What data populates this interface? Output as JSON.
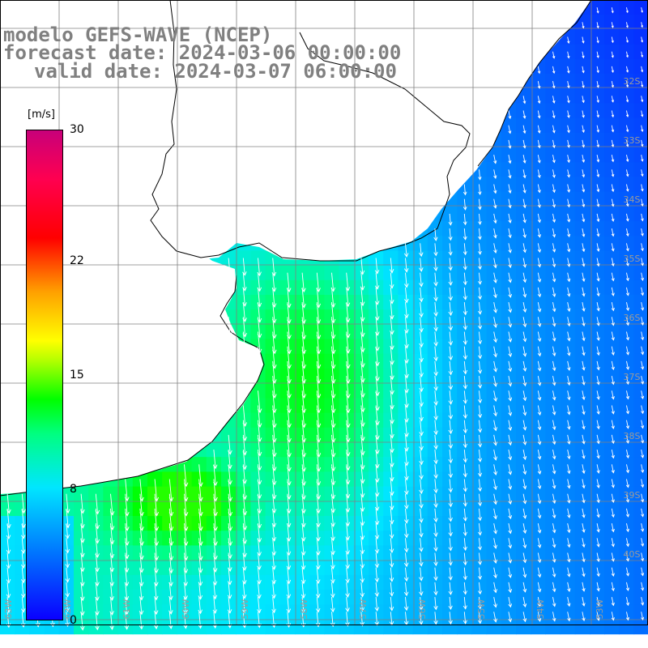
{
  "title": {
    "model": "modelo GEFS-WAVE (NCEP)",
    "forecast": "forecast date: 2024-03-06 00:00:00",
    "valid": "valid date: 2024-03-07 06:00:00"
  },
  "colorbar": {
    "unit": "[m/s]",
    "ticks": [
      {
        "label": "30",
        "value": 30
      },
      {
        "label": "22",
        "value": 22
      },
      {
        "label": "15",
        "value": 15
      },
      {
        "label": "8",
        "value": 8
      },
      {
        "label": "0",
        "value": 0
      }
    ],
    "colors": [
      "#0a00ff",
      "#0078ff",
      "#00e6ff",
      "#00ff80",
      "#00ff00",
      "#ffff00",
      "#ff0000",
      "#c8007a"
    ]
  },
  "map": {
    "lat_labels": [
      "32S",
      "33S",
      "34S",
      "35S",
      "36S",
      "37S",
      "38S",
      "39S",
      "40S"
    ],
    "lon_labels": [
      "63W",
      "62W",
      "61W",
      "60W",
      "59W",
      "58W",
      "57W",
      "56W",
      "55W",
      "54W",
      "53W",
      "52W",
      "51W"
    ],
    "variable": "wind speed and direction",
    "land_color": "#ffffff",
    "grid_color": "#808080"
  }
}
